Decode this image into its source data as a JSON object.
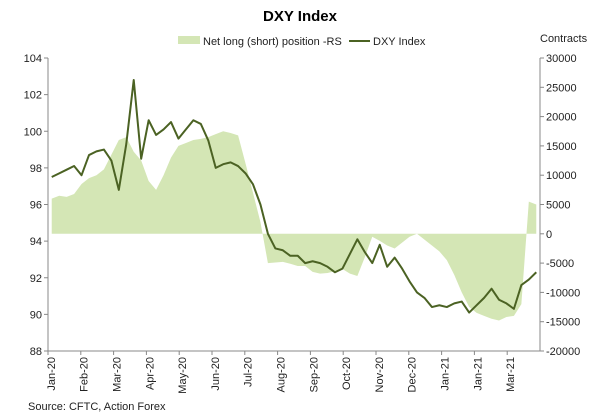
{
  "chart_data": {
    "type": "line+area",
    "title": "DXY Index",
    "right_axis_title": "Contracts",
    "source": "Source: CFTC, Action Forex",
    "legend": [
      {
        "name": "Net long (short) position -RS",
        "kind": "area",
        "color": "#d4e6b5"
      },
      {
        "name": "DXY Index",
        "kind": "line",
        "color": "#4b6223"
      }
    ],
    "left_axis": {
      "min": 88,
      "max": 104,
      "ticks": [
        88,
        90,
        92,
        94,
        96,
        98,
        100,
        102,
        104
      ]
    },
    "right_axis": {
      "min": -20000,
      "max": 30000,
      "ticks": [
        -20000,
        -15000,
        -10000,
        -5000,
        0,
        5000,
        10000,
        15000,
        20000,
        25000,
        30000
      ]
    },
    "x_labels": [
      "Jan-20",
      "Feb-20",
      "Mar-20",
      "Apr-20",
      "May-20",
      "Jun-20",
      "Jul-20",
      "Aug-20",
      "Sep-20",
      "Oct-20",
      "Nov-20",
      "Dec-20",
      "Jan-21",
      "Jan-21",
      "Mar-21"
    ],
    "n_periods": 66,
    "net_position_rs": [
      6000,
      6500,
      6300,
      6800,
      8500,
      9500,
      10000,
      11000,
      13500,
      16000,
      16500,
      14000,
      12500,
      9000,
      7500,
      10000,
      13000,
      15000,
      15500,
      16000,
      16200,
      16500,
      17000,
      17500,
      17200,
      16800,
      12000,
      7000,
      2000,
      -5000,
      -4900,
      -4800,
      -5100,
      -5500,
      -5500,
      -6500,
      -6800,
      -6700,
      -6400,
      -6000,
      -6800,
      -7200,
      -4000,
      -500,
      -1200,
      -2000,
      -2500,
      -1500,
      -500,
      0,
      -1000,
      -2000,
      -3000,
      -4500,
      -7000,
      -10000,
      -12500,
      -13500,
      -14000,
      -14500,
      -14800,
      -14200,
      -14000,
      -12000,
      5500,
      5000
    ],
    "dxy_index": [
      97.5,
      97.7,
      97.9,
      98.1,
      97.6,
      98.7,
      98.9,
      99.0,
      98.4,
      96.8,
      99.3,
      102.8,
      98.5,
      100.6,
      99.8,
      100.1,
      100.5,
      99.6,
      100.1,
      100.6,
      100.4,
      99.5,
      98.0,
      98.2,
      98.3,
      98.1,
      97.7,
      97.1,
      96.0,
      94.4,
      93.6,
      93.5,
      93.2,
      93.2,
      92.8,
      92.9,
      92.8,
      92.6,
      92.3,
      92.5,
      93.3,
      94.1,
      93.4,
      92.8,
      93.8,
      92.6,
      93.1,
      92.5,
      91.8,
      91.2,
      90.9,
      90.4,
      90.5,
      90.4,
      90.6,
      90.7,
      90.1,
      90.5,
      90.9,
      91.4,
      90.8,
      90.6,
      90.3,
      91.6,
      91.9,
      92.3
    ],
    "xlabel": "",
    "ylabel_left": "",
    "ylabel_right": "Contracts"
  }
}
